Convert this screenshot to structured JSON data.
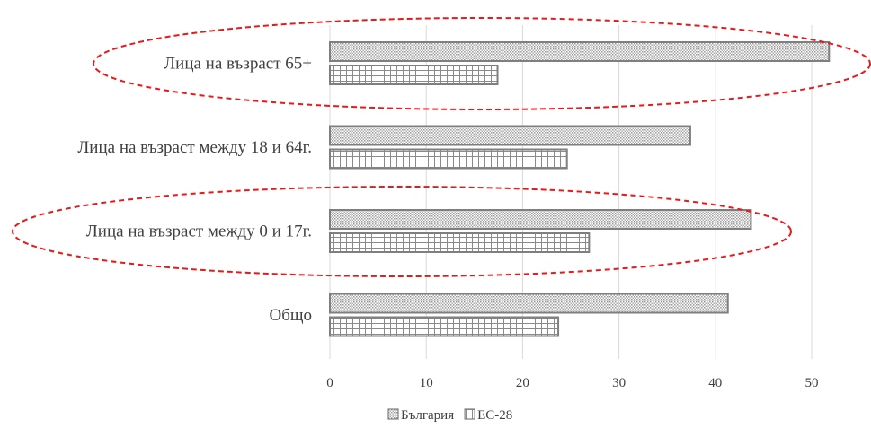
{
  "chart_data": {
    "type": "bar",
    "orientation": "horizontal",
    "categories": [
      "Лица на възраст 65+",
      "Лица на възраст между 18 и 64г.",
      "Лица на възраст между 0 и 17г.",
      "Общо"
    ],
    "series": [
      {
        "name": "България",
        "values": [
          51.8,
          37.4,
          43.7,
          41.3
        ],
        "pattern": "dots",
        "color": "#7f7f7f"
      },
      {
        "name": "ЕС-28",
        "values": [
          17.4,
          24.6,
          26.9,
          23.7
        ],
        "pattern": "grid",
        "color": "#7f7f7f"
      }
    ],
    "xlim": [
      0,
      55
    ],
    "xticks": [
      0,
      10,
      20,
      30,
      40,
      50
    ],
    "xtick_labels": [
      "0",
      "10",
      "20",
      "30",
      "40",
      "50"
    ],
    "title": "",
    "xlabel": "",
    "ylabel": "",
    "grid": "vertical",
    "legend": "bottom-center",
    "annotations": [
      {
        "type": "dashed-ellipse",
        "category": "Лица на възраст 65+",
        "color": "#e8191a"
      },
      {
        "type": "dashed-ellipse",
        "category": "Лица на възраст между 0 и 17г.",
        "color": "#e8191a"
      }
    ]
  }
}
